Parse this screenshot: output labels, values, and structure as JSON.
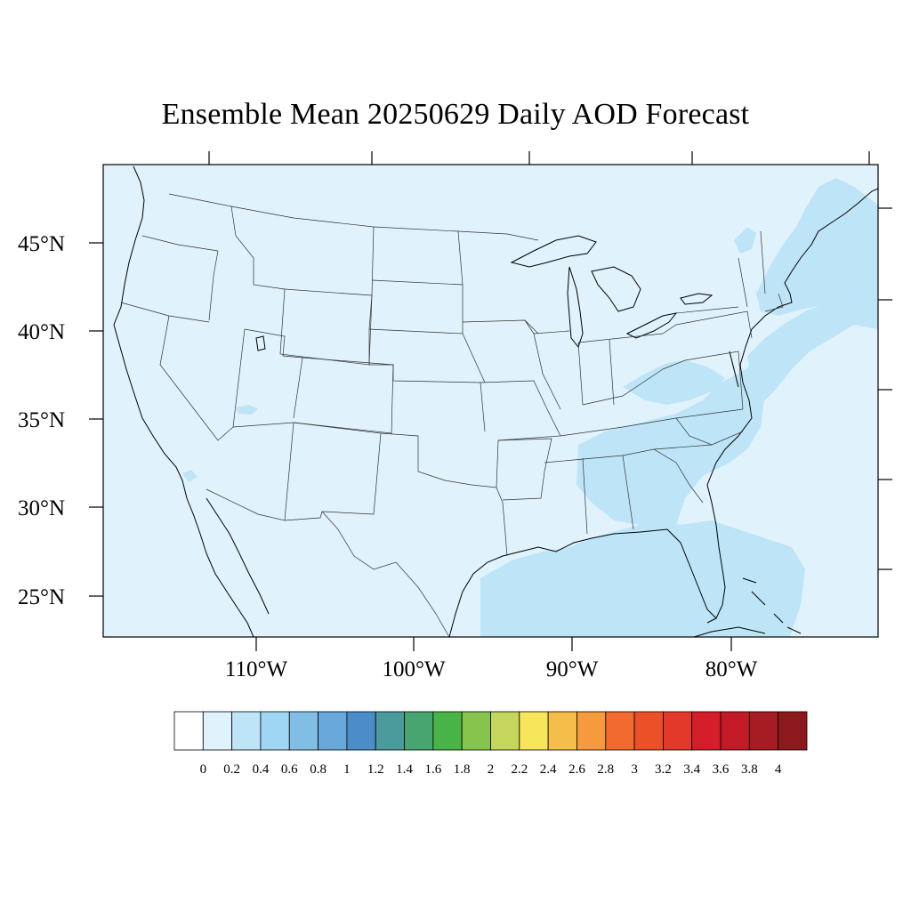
{
  "title": "Ensemble Mean 20250629 Daily AOD Forecast",
  "map": {
    "projection": "lambert-conformal",
    "region": "CONUS",
    "background_value_class": "0.0-0.2",
    "latitude_labels": [
      "45°N",
      "40°N",
      "35°N",
      "30°N",
      "25°N"
    ],
    "longitude_labels": [
      "110°W",
      "100°W",
      "90°W",
      "80°W"
    ],
    "elevated_aod_regions": [
      {
        "name": "Gulf of Mexico",
        "value_class": "0.2-0.4"
      },
      {
        "name": "Southeast US",
        "value_class": "0.2-0.4"
      },
      {
        "name": "Mid-Atlantic coast",
        "value_class": "0.2-0.4"
      },
      {
        "name": "New England / Gulf of Maine",
        "value_class": "0.2-0.4"
      },
      {
        "name": "Western Atlantic",
        "value_class": "0.2-0.4"
      }
    ]
  },
  "colorbar": {
    "labels": [
      "0",
      "0.2",
      "0.4",
      "0.6",
      "0.8",
      "1",
      "1.2",
      "1.4",
      "1.6",
      "1.8",
      "2",
      "2.2",
      "2.4",
      "2.6",
      "2.8",
      "3",
      "3.2",
      "3.4",
      "3.6",
      "3.8",
      "4"
    ],
    "colors": [
      "#ffffff",
      "#e0f2fb",
      "#bde5f7",
      "#9ed6f3",
      "#82bde6",
      "#69a8da",
      "#4b8dc9",
      "#4b9b9c",
      "#47a56f",
      "#48b447",
      "#86c44e",
      "#c5d65d",
      "#f7e65c",
      "#f5bd4a",
      "#f59a3d",
      "#f26a2e",
      "#eb5029",
      "#e2392a",
      "#d41f2a",
      "#c21a26",
      "#a71b22",
      "#8c1a1c"
    ]
  }
}
